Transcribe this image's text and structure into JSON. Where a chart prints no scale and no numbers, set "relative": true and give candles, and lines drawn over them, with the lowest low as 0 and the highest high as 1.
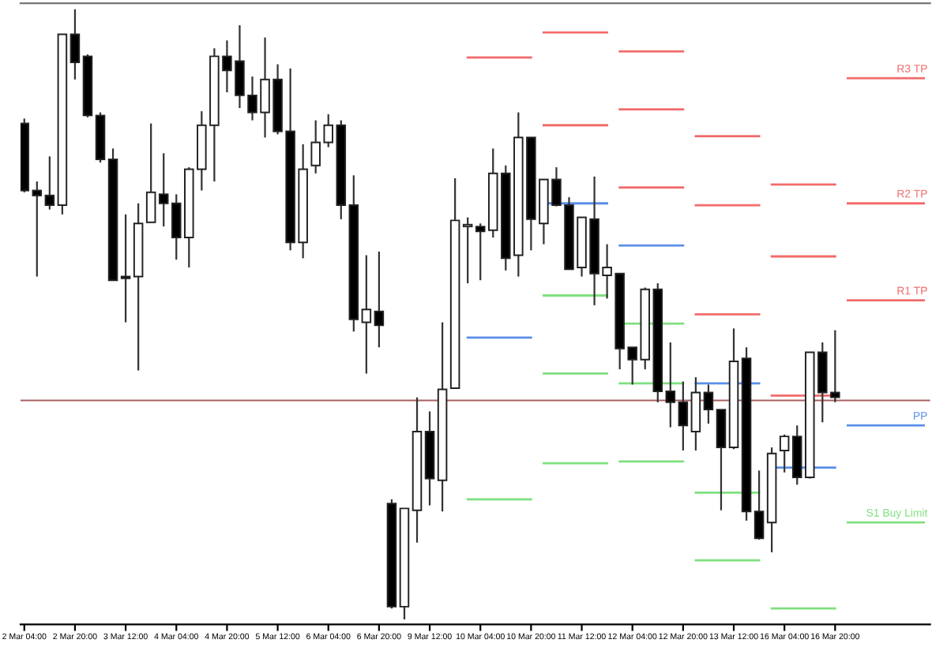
{
  "chart_data": {
    "type": "candlestick",
    "relative": true,
    "categories": [
      "2 Mar 04:00",
      null,
      null,
      null,
      "2 Mar 20:00",
      null,
      null,
      null,
      "3 Mar 12:00",
      null,
      null,
      null,
      "4 Mar 04:00",
      null,
      null,
      null,
      "4 Mar 20:00",
      null,
      null,
      null,
      "5 Mar 12:00",
      null,
      null,
      null,
      "6 Mar 04:00",
      null,
      null,
      null,
      "6 Mar 20:00",
      null,
      null,
      null,
      "9 Mar 12:00",
      null,
      null,
      null,
      "10 Mar 04:00",
      null,
      null,
      null,
      "10 Mar 20:00",
      null,
      null,
      null,
      "11 Mar 12:00",
      null,
      null,
      null,
      "12 Mar 04:00",
      null,
      null,
      null,
      "12 Mar 20:00",
      null,
      null,
      null,
      "13 Mar 12:00",
      null,
      null,
      null,
      "16 Mar 04:00",
      null,
      null,
      null,
      "16 Mar 20:00",
      null,
      null,
      null,
      null,
      null,
      null,
      null
    ],
    "ohlc": [
      [
        0.813,
        0.821,
        0.7,
        0.703
      ],
      [
        0.703,
        0.718,
        0.562,
        0.695
      ],
      [
        0.695,
        0.759,
        0.672,
        0.679
      ],
      [
        0.679,
        0.959,
        0.664,
        0.959
      ],
      [
        0.959,
        1.0,
        0.885,
        0.913
      ],
      [
        0.923,
        0.926,
        0.823,
        0.826
      ],
      [
        0.826,
        0.831,
        0.749,
        0.754
      ],
      [
        0.754,
        0.772,
        0.556,
        0.556
      ],
      [
        0.562,
        0.664,
        0.487,
        0.559
      ],
      [
        0.562,
        0.682,
        0.408,
        0.649
      ],
      [
        0.651,
        0.813,
        0.651,
        0.7
      ],
      [
        0.697,
        0.764,
        0.644,
        0.682
      ],
      [
        0.682,
        0.697,
        0.59,
        0.626
      ],
      [
        0.626,
        0.741,
        0.577,
        0.738
      ],
      [
        0.738,
        0.833,
        0.703,
        0.81
      ],
      [
        0.81,
        0.936,
        0.718,
        0.923
      ],
      [
        0.923,
        0.949,
        0.864,
        0.9
      ],
      [
        0.915,
        0.974,
        0.838,
        0.859
      ],
      [
        0.859,
        0.89,
        0.818,
        0.831
      ],
      [
        0.831,
        0.954,
        0.79,
        0.885
      ],
      [
        0.885,
        0.91,
        0.795,
        0.8
      ],
      [
        0.8,
        0.903,
        0.605,
        0.618
      ],
      [
        0.618,
        0.779,
        0.592,
        0.738
      ],
      [
        0.744,
        0.818,
        0.731,
        0.782
      ],
      [
        0.782,
        0.828,
        0.774,
        0.81
      ],
      [
        0.81,
        0.818,
        0.656,
        0.679
      ],
      [
        0.679,
        0.728,
        0.472,
        0.492
      ],
      [
        0.487,
        0.597,
        0.403,
        0.508
      ],
      [
        0.505,
        0.603,
        0.446,
        0.482
      ],
      [
        0.19,
        0.197,
        0.018,
        0.021
      ],
      [
        0.021,
        0.182,
        0.0,
        0.182
      ],
      [
        0.179,
        0.364,
        0.126,
        0.308
      ],
      [
        0.308,
        0.341,
        0.187,
        0.231
      ],
      [
        0.228,
        0.487,
        0.177,
        0.377
      ],
      [
        0.379,
        0.723,
        0.379,
        0.654
      ],
      [
        0.644,
        0.659,
        0.551,
        0.646
      ],
      [
        0.644,
        0.649,
        0.556,
        0.636
      ],
      [
        0.638,
        0.772,
        0.626,
        0.731
      ],
      [
        0.731,
        0.744,
        0.572,
        0.592
      ],
      [
        0.597,
        0.831,
        0.562,
        0.79
      ],
      [
        0.79,
        0.79,
        0.605,
        0.656
      ],
      [
        0.649,
        0.721,
        0.615,
        0.721
      ],
      [
        0.721,
        0.741,
        0.677,
        0.679
      ],
      [
        0.679,
        0.692,
        0.574,
        0.574
      ],
      [
        0.577,
        0.659,
        0.562,
        0.659
      ],
      [
        0.656,
        0.726,
        0.515,
        0.567
      ],
      [
        0.564,
        0.615,
        0.526,
        0.577
      ],
      [
        0.567,
        0.567,
        0.41,
        0.444
      ],
      [
        0.446,
        0.446,
        0.385,
        0.426
      ],
      [
        0.426,
        0.544,
        0.41,
        0.541
      ],
      [
        0.541,
        0.551,
        0.356,
        0.374
      ],
      [
        0.374,
        0.454,
        0.315,
        0.356
      ],
      [
        0.356,
        0.39,
        0.277,
        0.318
      ],
      [
        0.308,
        0.397,
        0.277,
        0.372
      ],
      [
        0.372,
        0.385,
        0.321,
        0.344
      ],
      [
        0.344,
        0.344,
        0.179,
        0.282
      ],
      [
        0.282,
        0.477,
        0.279,
        0.423
      ],
      [
        0.428,
        0.446,
        0.162,
        0.177
      ],
      [
        0.177,
        0.244,
        0.131,
        0.133
      ],
      [
        0.159,
        0.282,
        0.11,
        0.272
      ],
      [
        0.277,
        0.303,
        0.241,
        0.3
      ],
      [
        0.3,
        0.318,
        0.221,
        0.233
      ],
      [
        0.233,
        0.438,
        0.231,
        0.438
      ],
      [
        0.438,
        0.454,
        0.323,
        0.372
      ],
      [
        0.372,
        0.474,
        0.356,
        0.364
      ],
      null,
      null,
      null,
      null,
      null,
      null,
      null
    ],
    "series": [
      {
        "type": "line",
        "name": "R3 TP",
        "color": "#f26b6b",
        "values": [
          null,
          null,
          null,
          null,
          null,
          null,
          null,
          null,
          null,
          null,
          null,
          null,
          null,
          null,
          null,
          null,
          null,
          null,
          null,
          null,
          null,
          null,
          null,
          null,
          null,
          null,
          null,
          null,
          null,
          null,
          null,
          null,
          null,
          null,
          null,
          null,
          null,
          null,
          null,
          null,
          null,
          null,
          null,
          null,
          null,
          null,
          null,
          0.931,
          0.931,
          0.931,
          0.931,
          0.931,
          0.931,
          0.792,
          0.792,
          0.792,
          0.792,
          0.792,
          0.792,
          0.713,
          0.713,
          0.713,
          0.713,
          0.713,
          0.713,
          0.887,
          0.887,
          0.887,
          0.887,
          0.887,
          0.887,
          0.887
        ]
      },
      {
        "type": "line",
        "name": "R2 TP",
        "color": "#f26b6b",
        "values": [
          null,
          null,
          null,
          null,
          null,
          null,
          null,
          null,
          null,
          null,
          null,
          null,
          null,
          null,
          null,
          null,
          null,
          null,
          null,
          null,
          null,
          null,
          null,
          null,
          null,
          null,
          null,
          null,
          null,
          null,
          null,
          null,
          null,
          null,
          null,
          null,
          null,
          null,
          null,
          null,
          null,
          0.962,
          0.962,
          0.962,
          0.962,
          0.962,
          0.962,
          0.836,
          0.836,
          0.836,
          0.836,
          0.836,
          0.836,
          0.679,
          0.679,
          0.679,
          0.679,
          0.679,
          0.679,
          0.595,
          0.595,
          0.595,
          0.595,
          0.595,
          0.595,
          0.682,
          0.682,
          0.682,
          0.682,
          0.682,
          0.682,
          0.682
        ]
      },
      {
        "type": "line",
        "name": "R1 TP",
        "color": "#f26b6b",
        "values": [
          null,
          null,
          null,
          null,
          null,
          null,
          null,
          null,
          null,
          null,
          null,
          null,
          null,
          null,
          null,
          null,
          null,
          null,
          null,
          null,
          null,
          null,
          null,
          null,
          null,
          null,
          null,
          null,
          null,
          null,
          null,
          null,
          null,
          null,
          null,
          0.921,
          0.921,
          0.921,
          0.921,
          0.921,
          0.921,
          0.81,
          0.81,
          0.81,
          0.81,
          0.81,
          0.81,
          0.708,
          0.708,
          0.708,
          0.708,
          0.708,
          0.708,
          0.5,
          0.5,
          0.5,
          0.5,
          0.5,
          0.5,
          0.367,
          0.367,
          0.367,
          0.367,
          0.367,
          0.367,
          0.523,
          0.523,
          0.523,
          0.523,
          0.523,
          0.523,
          0.523
        ]
      },
      {
        "type": "line",
        "name": "PP",
        "color": "#5b8ee6",
        "values": [
          null,
          null,
          null,
          null,
          null,
          null,
          null,
          null,
          null,
          null,
          null,
          null,
          null,
          null,
          null,
          null,
          null,
          null,
          null,
          null,
          null,
          null,
          null,
          null,
          null,
          null,
          null,
          null,
          null,
          null,
          null,
          null,
          null,
          null,
          null,
          0.462,
          0.462,
          0.462,
          0.462,
          0.462,
          0.462,
          0.682,
          0.682,
          0.682,
          0.682,
          0.682,
          0.682,
          0.613,
          0.613,
          0.613,
          0.613,
          0.613,
          0.613,
          0.387,
          0.387,
          0.387,
          0.387,
          0.387,
          0.387,
          0.249,
          0.249,
          0.249,
          0.249,
          0.249,
          0.249,
          0.318,
          0.318,
          0.318,
          0.318,
          0.318,
          0.318,
          0.318
        ]
      },
      {
        "type": "line",
        "name": "S1 Buy Limit",
        "color": "#7fe07f",
        "values": [
          null,
          null,
          null,
          null,
          null,
          null,
          null,
          null,
          null,
          null,
          null,
          null,
          null,
          null,
          null,
          null,
          null,
          null,
          null,
          null,
          null,
          null,
          null,
          null,
          null,
          null,
          null,
          null,
          null,
          null,
          null,
          null,
          null,
          null,
          null,
          0.197,
          0.197,
          0.197,
          0.197,
          0.197,
          0.197,
          0.531,
          0.531,
          0.531,
          0.531,
          0.531,
          0.531,
          0.485,
          0.485,
          0.485,
          0.485,
          0.485,
          0.485,
          0.208,
          0.208,
          0.208,
          0.208,
          0.208,
          0.208,
          0.018,
          0.018,
          0.018,
          0.018,
          0.018,
          0.018,
          0.159,
          0.159,
          0.159,
          0.159,
          0.159,
          0.159,
          0.159
        ]
      },
      {
        "type": "line",
        "color": "#7fe07f",
        "values": [
          null,
          null,
          null,
          null,
          null,
          null,
          null,
          null,
          null,
          null,
          null,
          null,
          null,
          null,
          null,
          null,
          null,
          null,
          null,
          null,
          null,
          null,
          null,
          null,
          null,
          null,
          null,
          null,
          null,
          null,
          null,
          null,
          null,
          null,
          null,
          null,
          null,
          null,
          null,
          null,
          null,
          0.403,
          0.403,
          0.403,
          0.403,
          0.403,
          0.403,
          0.387,
          0.387,
          0.387,
          0.387,
          0.387,
          0.387,
          0.097,
          0.097,
          0.097,
          0.097,
          0.097,
          0.097,
          null,
          null,
          null,
          null,
          null,
          null,
          null,
          null,
          null,
          null,
          null,
          null,
          null
        ]
      },
      {
        "type": "line",
        "color": "#7fe07f",
        "values": [
          null,
          null,
          null,
          null,
          null,
          null,
          null,
          null,
          null,
          null,
          null,
          null,
          null,
          null,
          null,
          null,
          null,
          null,
          null,
          null,
          null,
          null,
          null,
          null,
          null,
          null,
          null,
          null,
          null,
          null,
          null,
          null,
          null,
          null,
          null,
          null,
          null,
          null,
          null,
          null,
          null,
          0.256,
          0.256,
          0.256,
          0.256,
          0.256,
          0.256,
          0.259,
          0.259,
          0.259,
          0.259,
          0.259,
          0.259,
          null,
          null,
          null,
          null,
          null,
          null,
          null,
          null,
          null,
          null,
          null,
          null,
          null,
          null,
          null,
          null,
          null,
          null,
          null
        ]
      }
    ],
    "ref_lines": [
      {
        "axis": "y",
        "value": 0.359,
        "color": "#a86060"
      }
    ]
  }
}
